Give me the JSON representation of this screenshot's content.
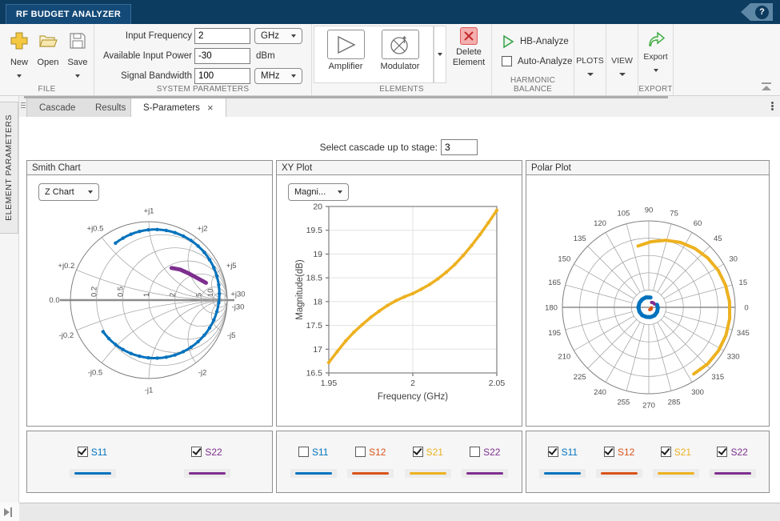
{
  "titlebar": {
    "app_tab": "RF BUDGET ANALYZER",
    "help_label": "?"
  },
  "toolbar": {
    "file": {
      "section_label": "FILE",
      "new_label": "New",
      "open_label": "Open",
      "save_label": "Save"
    },
    "system_parameters": {
      "section_label": "SYSTEM PARAMETERS",
      "input_frequency": {
        "label": "Input Frequency",
        "value": "2",
        "unit": "GHz"
      },
      "available_input_power": {
        "label": "Available Input Power",
        "value": "-30",
        "unit": "dBm"
      },
      "signal_bandwidth": {
        "label": "Signal Bandwidth",
        "value": "100",
        "unit": "MHz"
      }
    },
    "elements": {
      "section_label": "ELEMENTS",
      "amplifier_label": "Amplifier",
      "modulator_label": "Modulator",
      "delete_label_line1": "Delete",
      "delete_label_line2": "Element"
    },
    "harmonic_balance": {
      "section_label": "HARMONIC BALANCE",
      "hb_analyze_label": "HB-Analyze",
      "auto_analyze_label": "Auto-Analyze",
      "auto_analyze_checked": false
    },
    "plots_label": "PLOTS",
    "view_label": "VIEW",
    "export": {
      "section_label": "EXPORT",
      "export_label": "Export"
    }
  },
  "sidebar": {
    "panel_label": "ELEMENT PARAMETERS"
  },
  "document_tabs": {
    "tabs": [
      {
        "label": "Cascade",
        "active": false
      },
      {
        "label": "Results",
        "active": false
      },
      {
        "label": "S-Parameters",
        "active": true,
        "close": "×"
      }
    ]
  },
  "main": {
    "stage_label": "Select cascade up to stage:",
    "stage_value": "3"
  },
  "series_colors": {
    "S11": "#0072BD",
    "S12": "#D95319",
    "S21": "#EDB120",
    "S22": "#7E2F8E"
  },
  "panels": {
    "smith": {
      "title": "Smith Chart",
      "chart_type_dropdown": "Z Chart",
      "legend": [
        {
          "name": "S11",
          "checked": true
        },
        {
          "name": "S22",
          "checked": true
        }
      ]
    },
    "xy": {
      "title": "XY Plot",
      "chart_type_dropdown": "Magni...",
      "legend": [
        {
          "name": "S11",
          "checked": false
        },
        {
          "name": "S12",
          "checked": false
        },
        {
          "name": "S21",
          "checked": true
        },
        {
          "name": "S22",
          "checked": false
        }
      ]
    },
    "polar": {
      "title": "Polar Plot",
      "legend": [
        {
          "name": "S11",
          "checked": true
        },
        {
          "name": "S12",
          "checked": true
        },
        {
          "name": "S21",
          "checked": true
        },
        {
          "name": "S22",
          "checked": true
        }
      ]
    }
  },
  "chart_data": [
    {
      "type": "smith",
      "title": "Smith Chart",
      "mode": "Z Chart",
      "axis_zero_label": "0.0",
      "resistance_circles": [
        {
          "v": 0.2,
          "label": "0.2"
        },
        {
          "v": 0.5,
          "label": "0.5"
        },
        {
          "v": 1,
          "label": "1"
        },
        {
          "v": 2,
          "label": "2"
        },
        {
          "v": 5,
          "label": "5"
        },
        {
          "v": 10,
          "label": "10"
        }
      ],
      "reactance_arcs": [
        {
          "v": 0.2,
          "top": "+j0.2",
          "bottom": "-j0.2"
        },
        {
          "v": 0.5,
          "top": "+j0.5",
          "bottom": "-j0.5"
        },
        {
          "v": 1,
          "top": "+j1",
          "bottom": "-j1"
        },
        {
          "v": 2,
          "top": "+j2",
          "bottom": "-j2"
        },
        {
          "v": 5,
          "top": "+j5",
          "bottom": "-j5"
        },
        {
          "v": 30,
          "top": "+j30",
          "bottom": "-j30"
        }
      ],
      "series": [
        {
          "name": "S11",
          "style": "circle-arc",
          "arc": {
            "cx": 0.08,
            "cy": 0.08,
            "r": 0.82,
            "start_deg": 128,
            "end_deg": -147
          }
        },
        {
          "name": "S22",
          "style": "arc",
          "points": [
            [
              0.29,
              0.41
            ],
            [
              0.4,
              0.39
            ],
            [
              0.51,
              0.34
            ],
            [
              0.62,
              0.28
            ],
            [
              0.73,
              0.22
            ]
          ]
        }
      ]
    },
    {
      "type": "line",
      "title": "XY Plot",
      "mode": "Magni...",
      "xlabel": "Frequency (GHz)",
      "ylabel": "Magnitude(dB)",
      "xlim": [
        1.95,
        2.05
      ],
      "ylim": [
        16.5,
        20
      ],
      "xticks": [
        1.95,
        2,
        2.05
      ],
      "yticks": [
        16.5,
        17,
        17.5,
        18,
        18.5,
        19,
        19.5,
        20
      ],
      "series": [
        {
          "name": "S21",
          "x": [
            1.95,
            1.955,
            1.96,
            1.965,
            1.97,
            1.975,
            1.98,
            1.985,
            1.99,
            1.995,
            2,
            2.005,
            2.01,
            2.015,
            2.02,
            2.025,
            2.03,
            2.035,
            2.04,
            2.045,
            2.05
          ],
          "y": [
            16.72,
            16.95,
            17.17,
            17.36,
            17.52,
            17.67,
            17.8,
            17.92,
            18.02,
            18.1,
            18.17,
            18.26,
            18.36,
            18.48,
            18.62,
            18.78,
            18.97,
            19.18,
            19.41,
            19.66,
            19.92
          ]
        }
      ]
    },
    {
      "type": "polar",
      "title": "Polar Plot",
      "rings": 5,
      "rlim": [
        0,
        1
      ],
      "angle_ticks": [
        "0",
        "15",
        "30",
        "45",
        "60",
        "75",
        "90",
        "105",
        "120",
        "135",
        "150",
        "165",
        "180",
        "195",
        "210",
        "225",
        "240",
        "255",
        "270",
        "285",
        "300",
        "315",
        "330",
        "345"
      ],
      "series": [
        {
          "name": "S11",
          "width": 5,
          "points_deg_r": [
            [
              80,
              0.115
            ],
            [
              105,
              0.12
            ],
            [
              130,
              0.12
            ],
            [
              155,
              0.12
            ],
            [
              180,
              0.12
            ],
            [
              205,
              0.12
            ],
            [
              230,
              0.12
            ],
            [
              255,
              0.115
            ],
            [
              280,
              0.115
            ],
            [
              305,
              0.115
            ],
            [
              330,
              0.11
            ],
            [
              355,
              0.105
            ],
            [
              378,
              0.1
            ]
          ]
        },
        {
          "name": "S12",
          "width": 4,
          "points_deg_r": [
            [
              -10,
              0.03
            ],
            [
              -40,
              0.035
            ],
            [
              -70,
              0.03
            ]
          ]
        },
        {
          "name": "S21",
          "width": 4,
          "points_deg_r": [
            [
              100,
              0.72
            ],
            [
              88,
              0.76
            ],
            [
              76,
              0.8
            ],
            [
              64,
              0.835
            ],
            [
              52,
              0.865
            ],
            [
              40,
              0.89
            ],
            [
              28,
              0.91
            ],
            [
              16,
              0.925
            ],
            [
              4,
              0.937
            ],
            [
              -8,
              0.945
            ],
            [
              -20,
              0.95
            ],
            [
              -32,
              0.95
            ],
            [
              -44,
              0.945
            ],
            [
              -56,
              0.93
            ]
          ]
        },
        {
          "name": "S22",
          "width": 4,
          "points_deg_r": [
            [
              60,
              0.065
            ],
            [
              45,
              0.075
            ],
            [
              30,
              0.075
            ]
          ]
        }
      ]
    }
  ]
}
